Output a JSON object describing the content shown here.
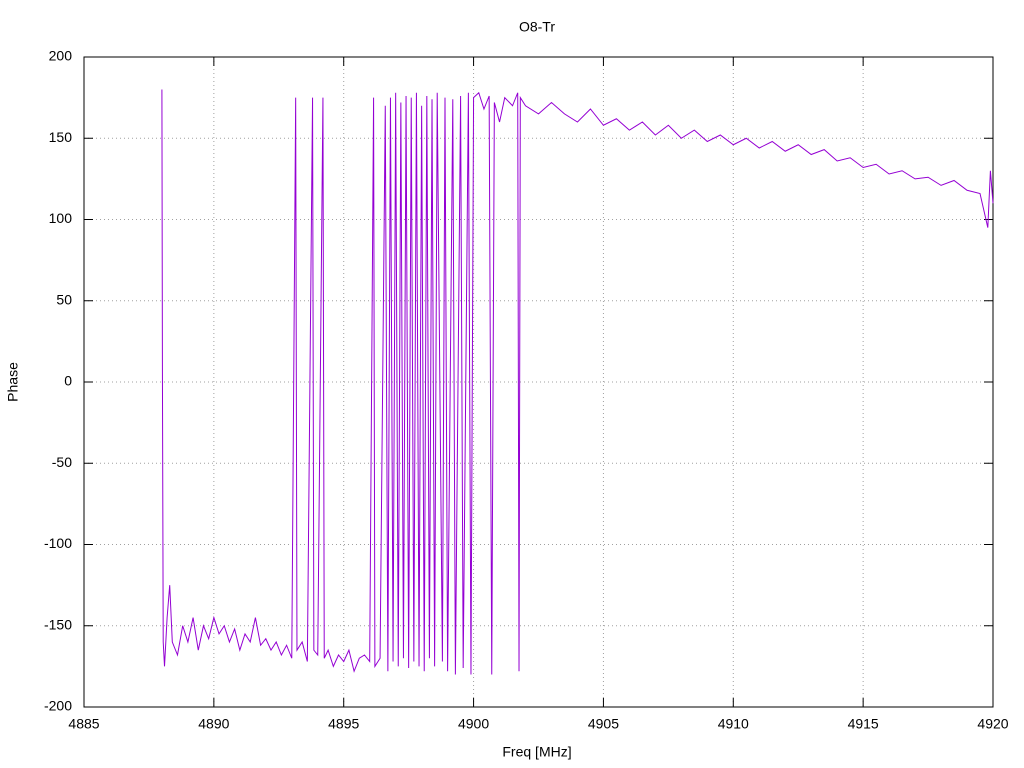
{
  "chart_data": {
    "type": "line",
    "title": "O8-Tr",
    "x_label": "Freq [MHz]",
    "y_label": "Phase",
    "xlim": [
      4885,
      4920
    ],
    "xticks": [
      4885,
      4890,
      4895,
      4900,
      4905,
      4910,
      4915,
      4920
    ],
    "ylim": [
      -200,
      200
    ],
    "yticks": [
      -200,
      -150,
      -100,
      -50,
      0,
      50,
      100,
      150,
      200
    ],
    "grid": true,
    "x": [
      4888.0,
      4888.02,
      4888.05,
      4888.1,
      4888.2,
      4888.3,
      4888.4,
      4888.6,
      4888.8,
      4889.0,
      4889.2,
      4889.4,
      4889.6,
      4889.8,
      4890.0,
      4890.2,
      4890.4,
      4890.6,
      4890.8,
      4891.0,
      4891.2,
      4891.4,
      4891.6,
      4891.8,
      4892.0,
      4892.2,
      4892.4,
      4892.6,
      4892.8,
      4893.0,
      4893.15,
      4893.2,
      4893.4,
      4893.6,
      4893.8,
      4893.85,
      4894.0,
      4894.2,
      4894.25,
      4894.4,
      4894.6,
      4894.8,
      4895.0,
      4895.2,
      4895.4,
      4895.6,
      4895.8,
      4896.0,
      4896.15,
      4896.2,
      4896.4,
      4896.6,
      4896.7,
      4896.8,
      4896.9,
      4897.0,
      4897.1,
      4897.2,
      4897.3,
      4897.4,
      4897.5,
      4897.6,
      4897.7,
      4897.8,
      4897.9,
      4898.0,
      4898.1,
      4898.2,
      4898.3,
      4898.4,
      4898.5,
      4898.6,
      4898.8,
      4898.9,
      4899.0,
      4899.2,
      4899.3,
      4899.5,
      4899.6,
      4899.8,
      4899.9,
      4900.0,
      4900.2,
      4900.4,
      4900.6,
      4900.7,
      4900.8,
      4901.0,
      4901.2,
      4901.5,
      4901.7,
      4901.75,
      4901.8,
      4902.0,
      4902.5,
      4903.0,
      4903.5,
      4904.0,
      4904.5,
      4905.0,
      4905.5,
      4906.0,
      4906.5,
      4907.0,
      4907.5,
      4908.0,
      4908.5,
      4909.0,
      4909.5,
      4910.0,
      4910.5,
      4911.0,
      4911.5,
      4912.0,
      4912.5,
      4913.0,
      4913.5,
      4914.0,
      4914.5,
      4915.0,
      4915.5,
      4916.0,
      4916.5,
      4917.0,
      4917.5,
      4918.0,
      4918.5,
      4919.0,
      4919.5,
      4919.8,
      4919.9,
      4920.0
    ],
    "series": [
      {
        "name": "O8-Tr",
        "color": "#9400d3",
        "values": [
          180,
          5,
          -160,
          -175,
          -145,
          -125,
          -160,
          -168,
          -150,
          -160,
          -145,
          -165,
          -150,
          -158,
          -145,
          -155,
          -150,
          -160,
          -152,
          -165,
          -155,
          -160,
          -145,
          -162,
          -158,
          -165,
          -160,
          -168,
          -162,
          -170,
          175,
          -165,
          -160,
          -172,
          175,
          -165,
          -168,
          175,
          -170,
          -165,
          -175,
          -168,
          -172,
          -165,
          -178,
          -170,
          -168,
          -172,
          175,
          -175,
          -170,
          170,
          -178,
          175,
          -172,
          178,
          -175,
          172,
          -170,
          176,
          -176,
          175,
          -172,
          178,
          -175,
          170,
          -178,
          176,
          -170,
          174,
          -175,
          178,
          -172,
          175,
          -178,
          174,
          -180,
          176,
          -176,
          178,
          -180,
          175,
          178,
          168,
          176,
          -180,
          172,
          160,
          175,
          170,
          178,
          -178,
          175,
          170,
          165,
          172,
          165,
          160,
          168,
          158,
          162,
          155,
          160,
          152,
          158,
          150,
          155,
          148,
          152,
          146,
          150,
          144,
          148,
          142,
          146,
          140,
          143,
          136,
          138,
          132,
          134,
          128,
          130,
          125,
          126,
          121,
          124,
          118,
          116,
          95,
          130,
          110
        ]
      }
    ]
  }
}
